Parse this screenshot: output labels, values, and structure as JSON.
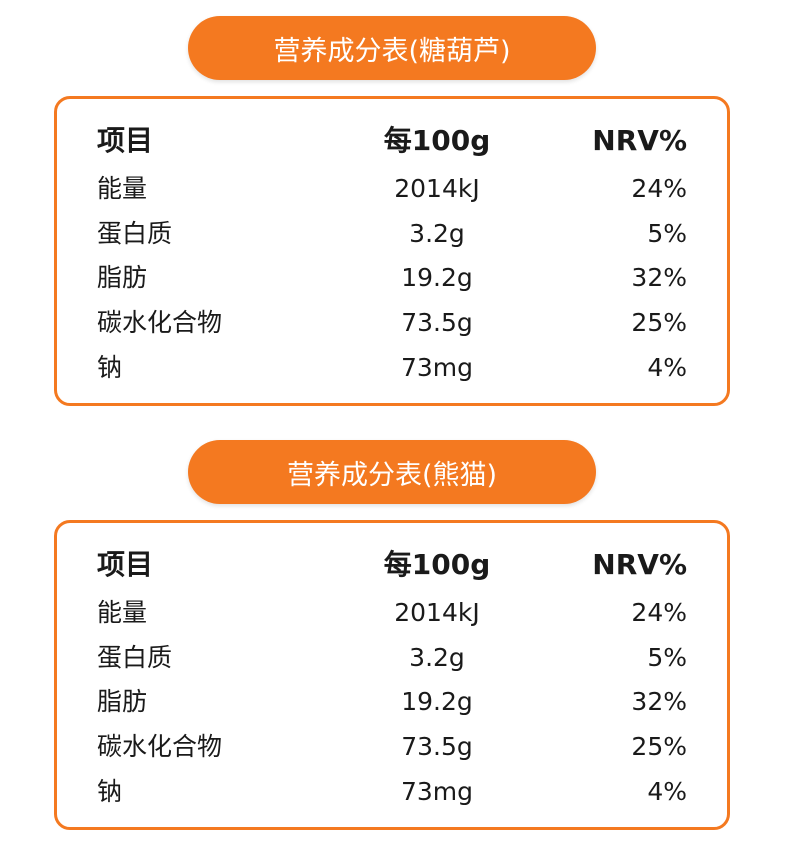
{
  "tables": [
    {
      "title": "营养成分表(糖葫芦)",
      "headers": [
        "项目",
        "每100g",
        "NRV%"
      ],
      "rows": [
        [
          "能量",
          "2014kJ",
          "24%"
        ],
        [
          "蛋白质",
          "3.2g",
          "5%"
        ],
        [
          "脂肪",
          "19.2g",
          "32%"
        ],
        [
          "碳水化合物",
          "73.5g",
          "25%"
        ],
        [
          "钠",
          "73mg",
          "4%"
        ]
      ]
    },
    {
      "title": "营养成分表(熊猫)",
      "headers": [
        "项目",
        "每100g",
        "NRV%"
      ],
      "rows": [
        [
          "能量",
          "2014kJ",
          "24%"
        ],
        [
          "蛋白质",
          "3.2g",
          "5%"
        ],
        [
          "脂肪",
          "19.2g",
          "32%"
        ],
        [
          "碳水化合物",
          "73.5g",
          "25%"
        ],
        [
          "钠",
          "73mg",
          "4%"
        ]
      ]
    }
  ],
  "colors": {
    "accent": "#f47920",
    "text": "#1a1a1a",
    "title_text": "#ffffff"
  }
}
